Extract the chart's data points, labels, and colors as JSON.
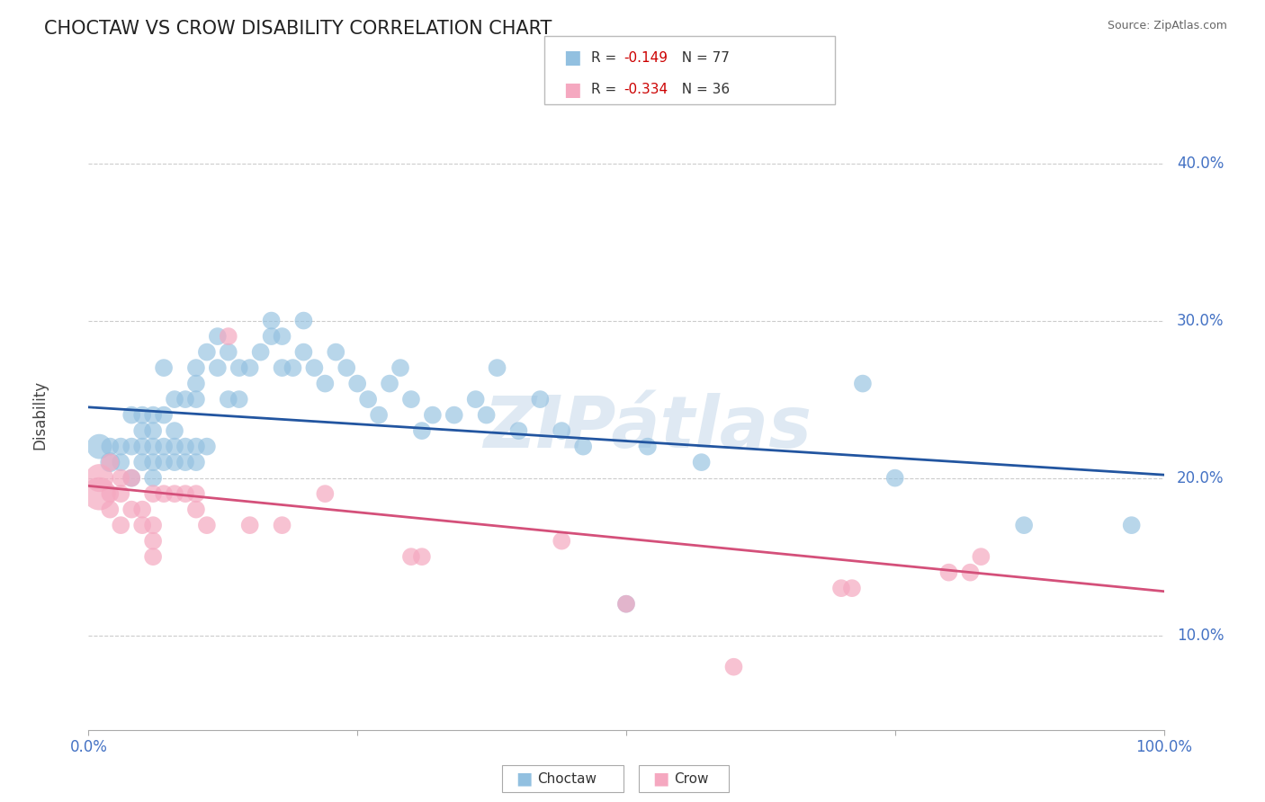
{
  "title": "CHOCTAW VS CROW DISABILITY CORRELATION CHART",
  "source": "Source: ZipAtlas.com",
  "ylabel": "Disability",
  "xlim": [
    0.0,
    1.0
  ],
  "ylim": [
    0.04,
    0.44
  ],
  "yticks": [
    0.1,
    0.2,
    0.3,
    0.4
  ],
  "ytick_labels": [
    "10.0%",
    "20.0%",
    "30.0%",
    "40.0%"
  ],
  "xticks": [
    0.0,
    0.25,
    0.5,
    0.75,
    1.0
  ],
  "xtick_labels": [
    "0.0%",
    "",
    "",
    "",
    "100.0%"
  ],
  "choctaw_color": "#92c0e0",
  "crow_color": "#f5a8c0",
  "line_choctaw_color": "#2255a0",
  "line_crow_color": "#d4507a",
  "background_color": "#ffffff",
  "grid_color": "#cccccc",
  "choctaw_x": [
    0.01,
    0.02,
    0.02,
    0.03,
    0.03,
    0.04,
    0.04,
    0.04,
    0.05,
    0.05,
    0.05,
    0.05,
    0.06,
    0.06,
    0.06,
    0.06,
    0.06,
    0.07,
    0.07,
    0.07,
    0.07,
    0.08,
    0.08,
    0.08,
    0.08,
    0.09,
    0.09,
    0.09,
    0.1,
    0.1,
    0.1,
    0.1,
    0.1,
    0.11,
    0.11,
    0.12,
    0.12,
    0.13,
    0.13,
    0.14,
    0.14,
    0.15,
    0.16,
    0.17,
    0.17,
    0.18,
    0.18,
    0.19,
    0.2,
    0.2,
    0.21,
    0.22,
    0.23,
    0.24,
    0.25,
    0.26,
    0.27,
    0.28,
    0.29,
    0.3,
    0.31,
    0.32,
    0.34,
    0.36,
    0.37,
    0.38,
    0.4,
    0.42,
    0.44,
    0.46,
    0.5,
    0.52,
    0.57,
    0.72,
    0.75,
    0.87,
    0.97
  ],
  "choctaw_y": [
    0.22,
    0.21,
    0.22,
    0.21,
    0.22,
    0.2,
    0.22,
    0.24,
    0.21,
    0.22,
    0.23,
    0.24,
    0.2,
    0.21,
    0.22,
    0.23,
    0.24,
    0.21,
    0.22,
    0.24,
    0.27,
    0.21,
    0.22,
    0.23,
    0.25,
    0.21,
    0.22,
    0.25,
    0.21,
    0.22,
    0.25,
    0.26,
    0.27,
    0.22,
    0.28,
    0.27,
    0.29,
    0.25,
    0.28,
    0.25,
    0.27,
    0.27,
    0.28,
    0.29,
    0.3,
    0.27,
    0.29,
    0.27,
    0.28,
    0.3,
    0.27,
    0.26,
    0.28,
    0.27,
    0.26,
    0.25,
    0.24,
    0.26,
    0.27,
    0.25,
    0.23,
    0.24,
    0.24,
    0.25,
    0.24,
    0.27,
    0.23,
    0.25,
    0.23,
    0.22,
    0.12,
    0.22,
    0.21,
    0.26,
    0.2,
    0.17,
    0.17
  ],
  "crow_x": [
    0.01,
    0.01,
    0.02,
    0.02,
    0.02,
    0.03,
    0.03,
    0.03,
    0.04,
    0.04,
    0.05,
    0.05,
    0.06,
    0.06,
    0.06,
    0.06,
    0.07,
    0.08,
    0.09,
    0.1,
    0.1,
    0.11,
    0.13,
    0.15,
    0.18,
    0.22,
    0.3,
    0.31,
    0.44,
    0.5,
    0.6,
    0.7,
    0.71,
    0.8,
    0.82,
    0.83
  ],
  "crow_y": [
    0.19,
    0.2,
    0.18,
    0.19,
    0.21,
    0.17,
    0.19,
    0.2,
    0.18,
    0.2,
    0.17,
    0.18,
    0.15,
    0.16,
    0.17,
    0.19,
    0.19,
    0.19,
    0.19,
    0.18,
    0.19,
    0.17,
    0.29,
    0.17,
    0.17,
    0.19,
    0.15,
    0.15,
    0.16,
    0.12,
    0.08,
    0.13,
    0.13,
    0.14,
    0.14,
    0.15
  ],
  "crow_size_large": [
    0,
    0,
    0,
    0,
    0,
    0,
    0,
    0,
    0,
    0,
    0,
    0,
    0,
    0,
    0,
    0,
    0,
    0,
    0,
    0,
    0,
    0,
    0,
    0,
    0,
    0,
    0,
    0,
    0,
    0,
    0,
    0,
    0,
    0,
    0,
    0
  ],
  "choctaw_line_x": [
    0.0,
    1.0
  ],
  "choctaw_line_y": [
    0.245,
    0.202
  ],
  "crow_line_x": [
    0.0,
    1.0
  ],
  "crow_line_y": [
    0.195,
    0.128
  ]
}
